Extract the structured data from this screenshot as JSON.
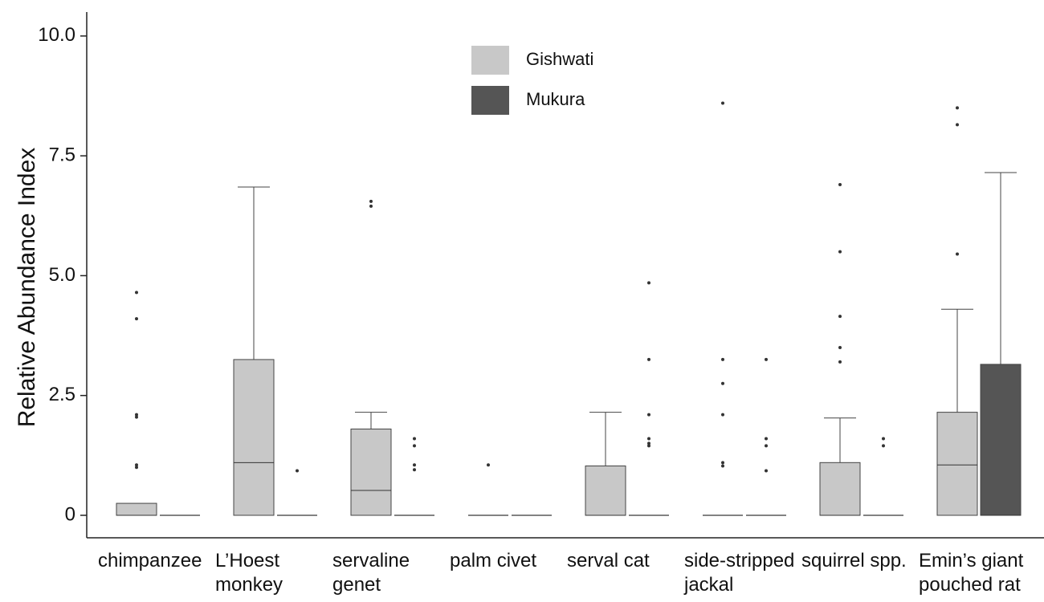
{
  "chart_data": {
    "type": "box",
    "y_label": "Relative Abundance Index",
    "categories": [
      "chimpanzee",
      "L’Hoest monkey",
      "servaline genet",
      "palm civet",
      "serval cat",
      "side-stripped jackal",
      "squirrel spp.",
      "Emin’s giant pouched rat"
    ],
    "ylim": [
      0,
      10.5
    ],
    "yticks": [
      0,
      2.5,
      {
        "value": 5,
        "label": "5.0"
      },
      7.5,
      {
        "value": 10,
        "label": "10.0"
      }
    ],
    "legend": "top-center",
    "series": [
      {
        "name": "Gishwati",
        "color": "#c8c8c8",
        "boxes": [
          {
            "min": 0,
            "q1": 0,
            "median": 0,
            "q3": 0.25,
            "max": 0.25,
            "outliers": [
              4.65,
              4.1,
              2.1,
              2.05,
              1.05,
              1.0
            ]
          },
          {
            "min": 0,
            "q1": 0,
            "median": 1.1,
            "q3": 3.25,
            "max": 6.85,
            "outliers": []
          },
          {
            "min": 0,
            "q1": 0,
            "median": 0.52,
            "q3": 1.8,
            "max": 2.15,
            "outliers": [
              6.55,
              6.45
            ]
          },
          {
            "min": 0,
            "q1": 0,
            "median": 0,
            "q3": 0,
            "max": 0,
            "outliers": [
              1.05
            ]
          },
          {
            "min": 0,
            "q1": 0,
            "median": 0,
            "q3": 1.03,
            "max": 2.15,
            "outliers": []
          },
          {
            "min": 0,
            "q1": 0,
            "median": 0,
            "q3": 0,
            "max": 0,
            "outliers": [
              8.6,
              3.25,
              2.75,
              2.1,
              1.1,
              1.03
            ]
          },
          {
            "min": 0,
            "q1": 0,
            "median": 0,
            "q3": 1.1,
            "max": 2.03,
            "outliers": [
              6.9,
              5.5,
              4.15,
              3.5,
              3.2
            ]
          },
          {
            "min": 0,
            "q1": 0,
            "median": 1.05,
            "q3": 2.15,
            "max": 4.3,
            "outliers": [
              8.5,
              8.15,
              5.45
            ]
          }
        ]
      },
      {
        "name": "Mukura",
        "color": "#555555",
        "boxes": [
          {
            "min": 0,
            "q1": 0,
            "median": 0,
            "q3": 0,
            "max": 0,
            "outliers": []
          },
          {
            "min": 0,
            "q1": 0,
            "median": 0,
            "q3": 0,
            "max": 0,
            "outliers": [
              0.93
            ]
          },
          {
            "min": 0,
            "q1": 0,
            "median": 0,
            "q3": 0,
            "max": 0,
            "outliers": [
              1.6,
              1.45,
              1.05,
              0.95
            ]
          },
          {
            "min": 0,
            "q1": 0,
            "median": 0,
            "q3": 0,
            "max": 0,
            "outliers": []
          },
          {
            "min": 0,
            "q1": 0,
            "median": 0,
            "q3": 0,
            "max": 0,
            "outliers": [
              4.85,
              3.25,
              2.1,
              1.6,
              1.5,
              1.45
            ]
          },
          {
            "min": 0,
            "q1": 0,
            "median": 0,
            "q3": 0,
            "max": 0,
            "outliers": [
              3.25,
              1.6,
              1.45,
              0.93
            ]
          },
          {
            "min": 0,
            "q1": 0,
            "median": 0,
            "q3": 0,
            "max": 0,
            "outliers": [
              1.6,
              1.45
            ]
          },
          {
            "min": 0,
            "q1": 0,
            "median": 0,
            "q3": 3.15,
            "max": 7.15,
            "outliers": []
          }
        ]
      }
    ]
  }
}
